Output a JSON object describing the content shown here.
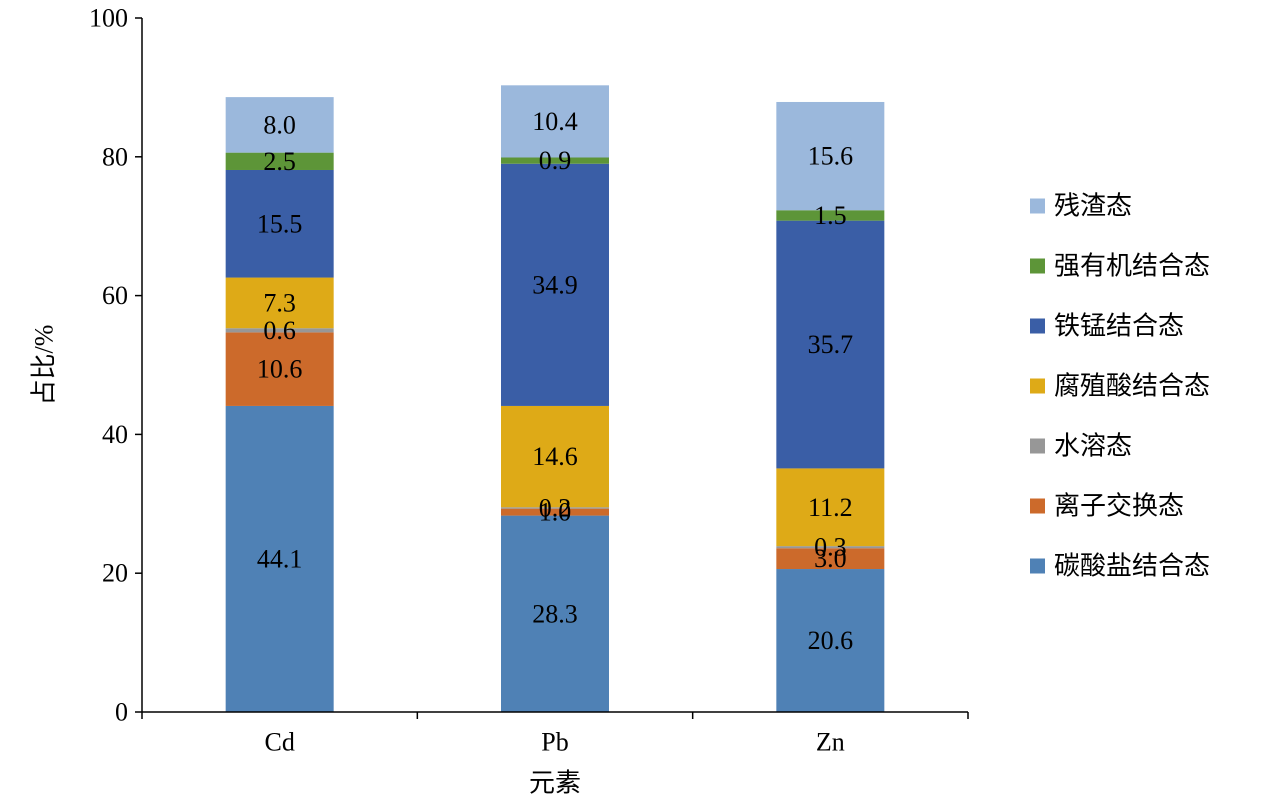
{
  "chart_data": {
    "type": "bar",
    "stacked": true,
    "title": "",
    "xlabel": "元素",
    "ylabel": "占比/%",
    "ylim": [
      0,
      100
    ],
    "yticks": [
      0,
      20,
      40,
      60,
      80,
      100
    ],
    "grid": false,
    "legend_position": "right",
    "categories": [
      "Cd",
      "Pb",
      "Zn"
    ],
    "series": [
      {
        "name": "碳酸盐结合态",
        "color": "#4f81b5",
        "values": [
          44.1,
          28.3,
          20.6
        ],
        "labels": [
          "44.1",
          "28.3",
          "20.6"
        ]
      },
      {
        "name": "离子交换态",
        "color": "#cc6a2b",
        "values": [
          10.6,
          1.0,
          3.0
        ],
        "labels": [
          "10.6",
          "1.0",
          "3.0"
        ]
      },
      {
        "name": "水溶态",
        "color": "#979797",
        "values": [
          0.6,
          0.2,
          0.3
        ],
        "labels": [
          "0.6",
          "0.2",
          "0.3"
        ]
      },
      {
        "name": "腐殖酸结合态",
        "color": "#deaa17",
        "values": [
          7.3,
          14.6,
          11.2
        ],
        "labels": [
          "7.3",
          "14.6",
          "11.2"
        ]
      },
      {
        "name": "铁锰结合态",
        "color": "#3a5ea6",
        "values": [
          15.5,
          34.9,
          35.7
        ],
        "labels": [
          "15.5",
          "34.9",
          "35.7"
        ]
      },
      {
        "name": "强有机结合态",
        "color": "#5d9538",
        "values": [
          2.5,
          0.9,
          1.5
        ],
        "labels": [
          "2.5",
          "0.9",
          "1.5"
        ]
      },
      {
        "name": "残渣态",
        "color": "#9bb8dc",
        "values": [
          8.0,
          10.4,
          15.6
        ],
        "labels": [
          "8.0",
          "10.4",
          "15.6"
        ]
      }
    ],
    "legend_order": [
      "残渣态",
      "强有机结合态",
      "铁锰结合态",
      "腐殖酸结合态",
      "水溶态",
      "离子交换态",
      "碳酸盐结合态"
    ]
  }
}
